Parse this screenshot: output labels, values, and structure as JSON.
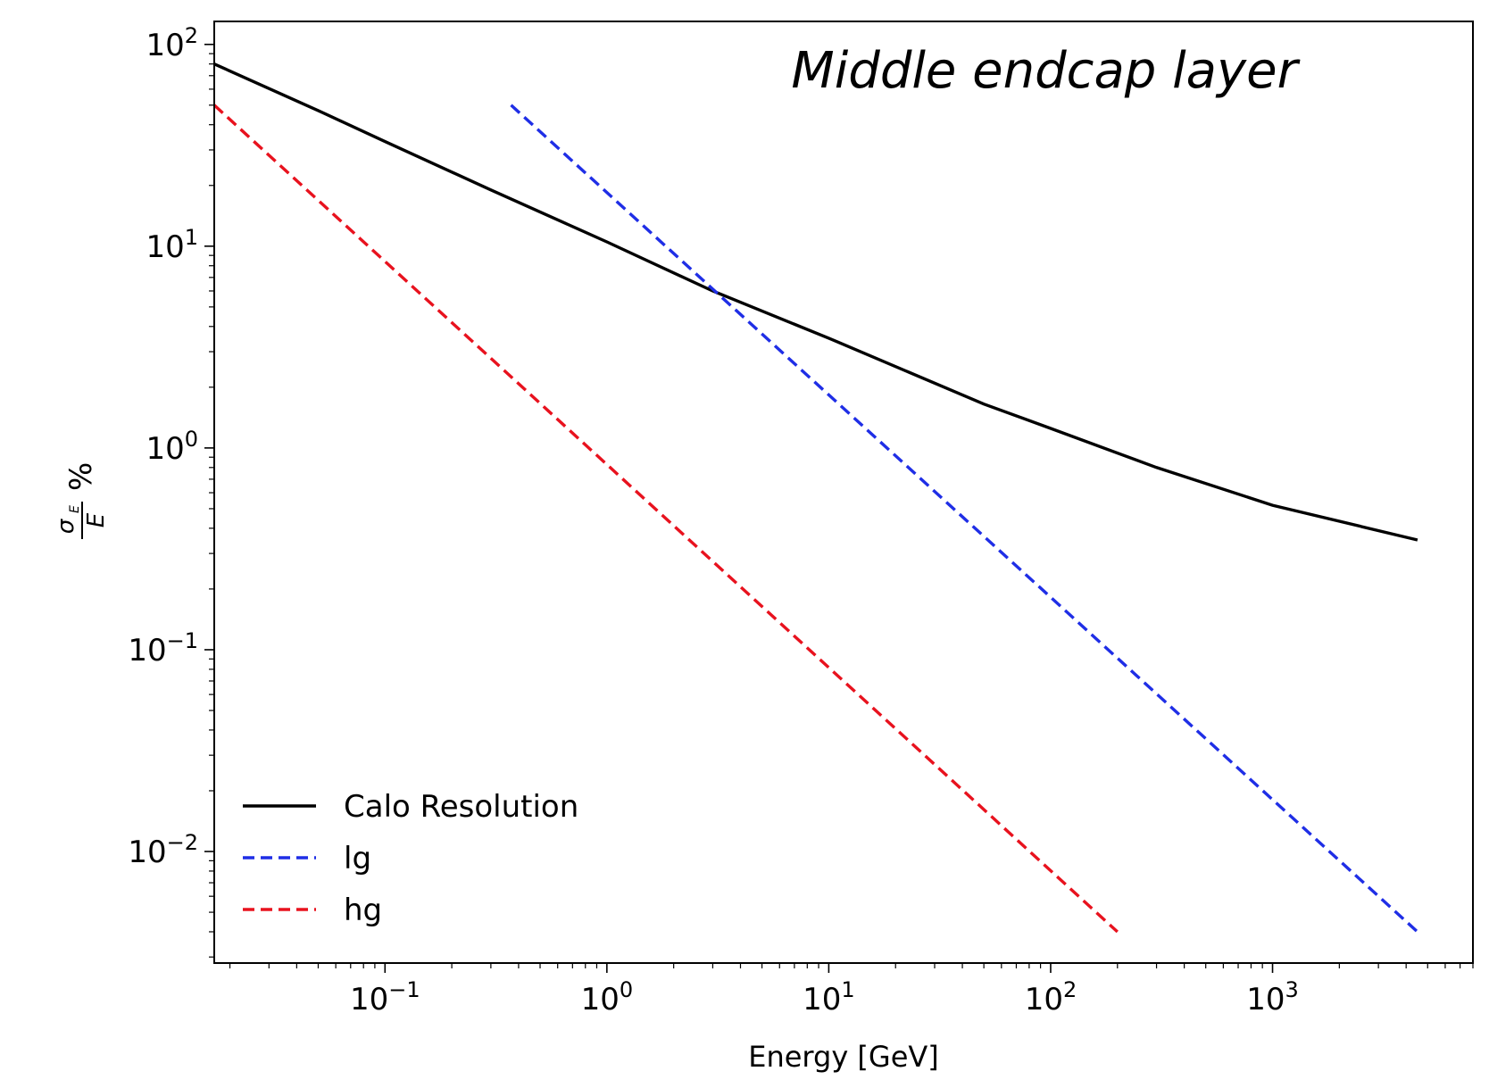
{
  "chart_data": {
    "type": "line",
    "title": "Middle endcap layer",
    "xlabel": "Energy [GeV]",
    "ylabel": {
      "num": "σ",
      "num_sub": "E",
      "den": "E",
      "suffix": "%"
    },
    "xscale": "log",
    "yscale": "log",
    "xlim": [
      0.017,
      8000
    ],
    "ylim": [
      0.0028,
      130
    ],
    "xticks": [
      {
        "base": "10",
        "exp": "−1",
        "value": 0.1
      },
      {
        "base": "10",
        "exp": "0",
        "value": 1
      },
      {
        "base": "10",
        "exp": "1",
        "value": 10
      },
      {
        "base": "10",
        "exp": "2",
        "value": 100
      },
      {
        "base": "10",
        "exp": "3",
        "value": 1000
      }
    ],
    "yticks": [
      {
        "base": "10",
        "exp": "−2",
        "value": 0.01
      },
      {
        "base": "10",
        "exp": "−1",
        "value": 0.1
      },
      {
        "base": "10",
        "exp": "0",
        "value": 1
      },
      {
        "base": "10",
        "exp": "1",
        "value": 10
      },
      {
        "base": "10",
        "exp": "2",
        "value": 100
      }
    ],
    "legend": {
      "placement": "lower-left"
    },
    "series": [
      {
        "name": "Calo Resolution",
        "color": "#000000",
        "dash": "solid",
        "x": [
          0.017,
          0.05,
          0.1,
          0.3,
          1,
          3,
          10,
          50,
          100,
          300,
          1000,
          4500
        ],
        "y": [
          80,
          47,
          33,
          19,
          10.5,
          6.0,
          3.5,
          1.65,
          1.25,
          0.8,
          0.52,
          0.35
        ]
      },
      {
        "name": "lg",
        "color": "#1f2ee6",
        "dash": "dashed",
        "x": [
          0.37,
          4500
        ],
        "y": [
          50,
          0.004
        ]
      },
      {
        "name": "hg",
        "color": "#e8121e",
        "dash": "dashed",
        "x": [
          0.017,
          200
        ],
        "y": [
          50,
          0.004
        ]
      }
    ]
  }
}
